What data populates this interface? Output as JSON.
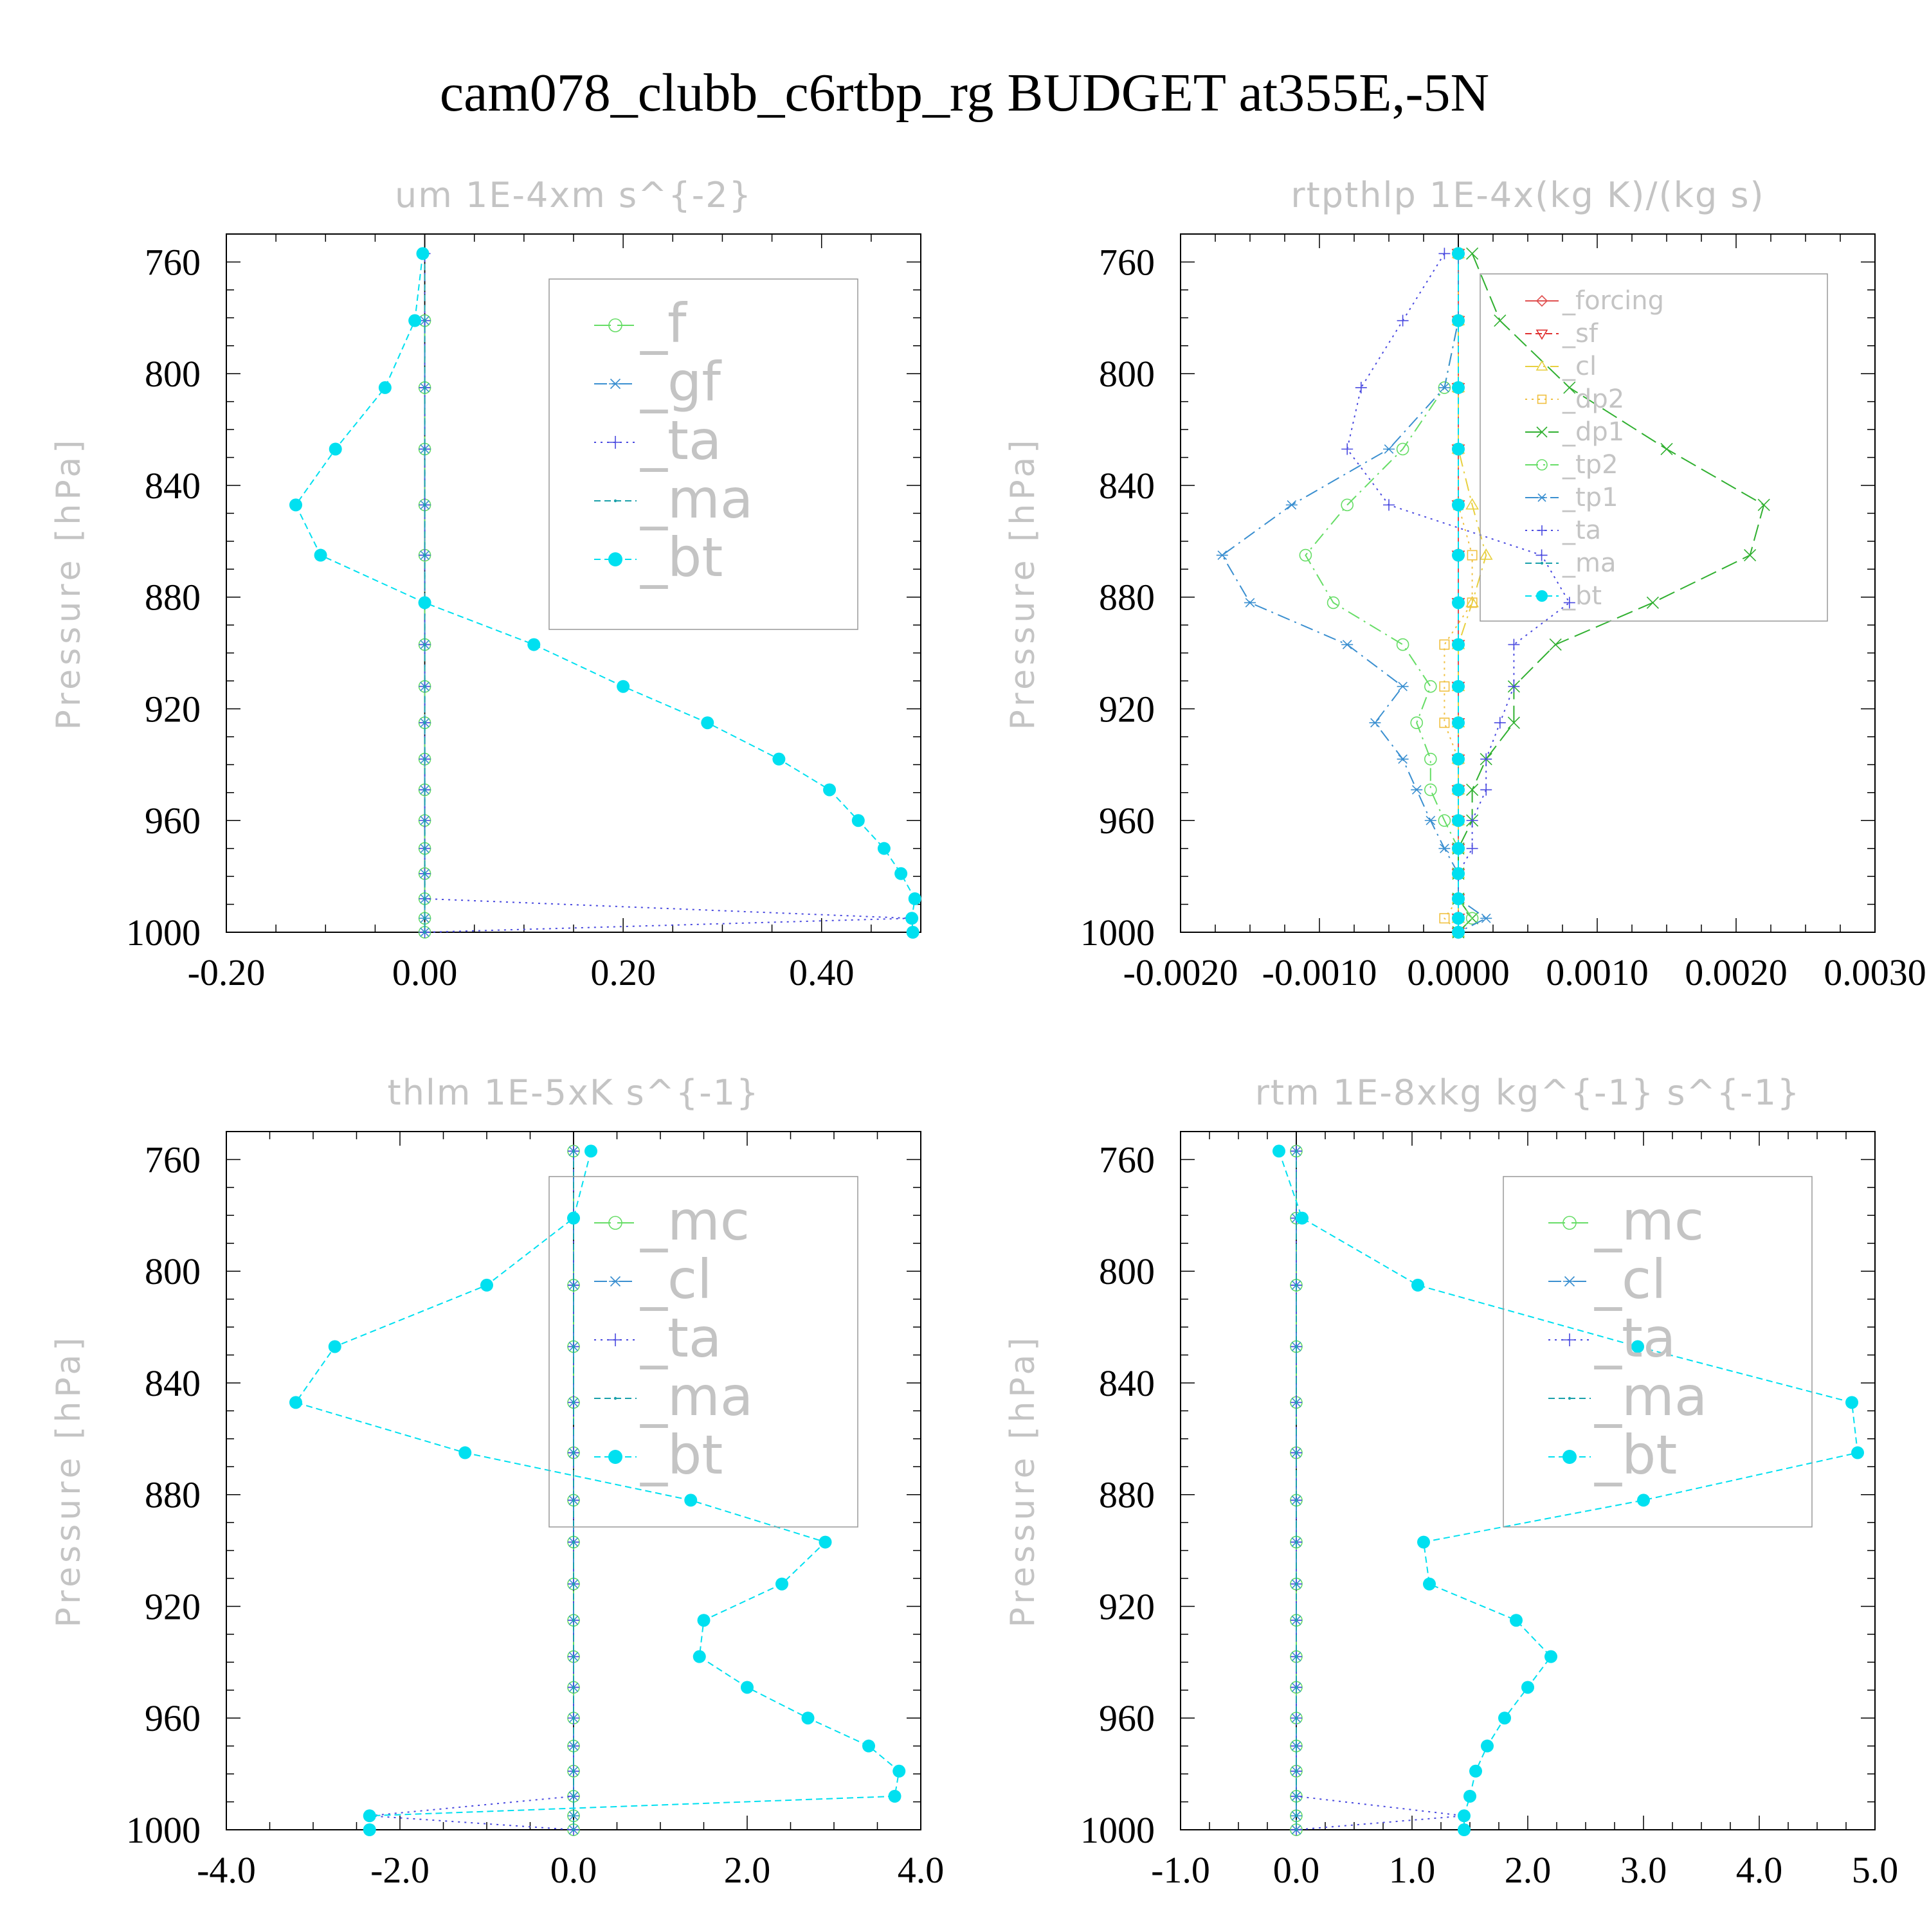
{
  "title": "cam078_clubb_c6rtbp_rg  BUDGET at355E,-5N",
  "chart_data": [
    {
      "type": "line",
      "title": "um   1E-4xm s^{-2}",
      "ylabel": "Pressure [hPa]",
      "xlabel": "",
      "ylim": [
        1000,
        750
      ],
      "xlim": [
        -0.2,
        0.5
      ],
      "xticks": [
        -0.2,
        0.0,
        0.2,
        0.4
      ],
      "xtick_labels": [
        "-0.20",
        "0.00",
        "0.20",
        "0.40"
      ],
      "yticks": [
        760,
        800,
        840,
        880,
        920,
        960,
        1000
      ],
      "ytick_labels": [
        "760",
        "800",
        "840",
        "880",
        "920",
        "960",
        "1000"
      ],
      "legend_position": "top-right",
      "legend_font": "large",
      "y": [
        757,
        781,
        805,
        827,
        847,
        865,
        882,
        897,
        912,
        925,
        938,
        949,
        960,
        970,
        979,
        988,
        995,
        1000
      ],
      "series": [
        {
          "name": "_f",
          "color": "#66dd66",
          "marker": "circle-open",
          "dash": "dash-long",
          "values": [
            null,
            0,
            0,
            0,
            0,
            0,
            0,
            0,
            0,
            0,
            0,
            0,
            0,
            0,
            0,
            0,
            0,
            0
          ]
        },
        {
          "name": "_gf",
          "color": "#3a8fd0",
          "marker": "asterisk",
          "dash": "dashdot",
          "values": [
            null,
            0,
            0,
            0,
            0,
            0,
            0,
            0,
            0,
            0,
            0,
            0,
            0,
            0,
            0,
            0,
            0,
            0
          ]
        },
        {
          "name": "_ta",
          "color": "#4a4ae0",
          "marker": "plus",
          "dash": "dot",
          "values": [
            0,
            0,
            0,
            0,
            0,
            0,
            0,
            0,
            0,
            0,
            0,
            0,
            0,
            0,
            0,
            0,
            0.49,
            0
          ]
        },
        {
          "name": "_ma",
          "color": "#1aa0aa",
          "marker": "dot",
          "dash": "dash",
          "values": [
            0,
            0,
            0,
            0,
            0,
            0,
            0,
            0,
            0,
            0,
            0,
            0,
            0,
            0,
            0,
            0,
            0,
            0
          ]
        },
        {
          "name": "_bt",
          "color": "#00e0f0",
          "marker": "filled-circle",
          "dash": "dash",
          "values": [
            -0.002,
            -0.01,
            -0.04,
            -0.09,
            -0.13,
            -0.105,
            0.0,
            0.11,
            0.2,
            0.285,
            0.357,
            0.408,
            0.437,
            0.463,
            0.48,
            0.494,
            0.491,
            0.492
          ]
        }
      ]
    },
    {
      "type": "line",
      "title": "rtpthlp   1E-4x(kg K)/(kg s)",
      "ylabel": "Pressure [hPa]",
      "xlabel": "",
      "ylim": [
        1000,
        750
      ],
      "xlim": [
        -0.002,
        0.003
      ],
      "xticks": [
        -0.002,
        -0.001,
        0.0,
        0.001,
        0.002,
        0.003
      ],
      "xtick_labels": [
        "-0.0020",
        "-0.0010",
        "0.0000",
        "0.0010",
        "0.0020",
        "0.0030"
      ],
      "yticks": [
        760,
        800,
        840,
        880,
        920,
        960,
        1000
      ],
      "ytick_labels": [
        "760",
        "800",
        "840",
        "880",
        "920",
        "960",
        "1000"
      ],
      "legend_position": "top-right",
      "legend_font": "small",
      "y": [
        757,
        781,
        805,
        827,
        847,
        865,
        882,
        897,
        912,
        925,
        938,
        949,
        960,
        970,
        979,
        988,
        995,
        1000
      ],
      "series": [
        {
          "name": "_forcing",
          "color": "#e05050",
          "marker": "diamond-open",
          "dash": "solid",
          "values": [
            0,
            0,
            0,
            0,
            0,
            0,
            0,
            0,
            0,
            0,
            0,
            0,
            0,
            0,
            0,
            0,
            0,
            0
          ]
        },
        {
          "name": "_sf",
          "color": "#e03030",
          "marker": "triangle-down-open",
          "dash": "dash",
          "values": [
            0,
            0,
            0,
            0,
            0,
            0,
            0,
            0,
            0,
            0,
            0,
            0,
            0,
            0,
            0,
            0,
            0,
            0
          ]
        },
        {
          "name": "_cl",
          "color": "#e8d040",
          "marker": "triangle-up-open",
          "dash": "dashdot",
          "values": [
            0,
            0,
            0,
            0,
            0.0001,
            0.0002,
            0.0001,
            0,
            0,
            0,
            0,
            0,
            0,
            0,
            0,
            0,
            0,
            0
          ]
        },
        {
          "name": "_dp2",
          "color": "#f0c040",
          "marker": "square-open",
          "dash": "dot",
          "values": [
            0,
            0,
            0,
            0,
            0,
            0.0001,
            0.0001,
            -0.0001,
            -0.0001,
            -0.0001,
            0,
            0,
            0,
            0,
            0,
            0,
            -0.0001,
            0
          ]
        },
        {
          "name": "_dp1",
          "color": "#30b030",
          "marker": "x",
          "dash": "dash-long",
          "values": [
            0.0001,
            0.0003,
            0.0008,
            0.0015,
            0.0022,
            0.0021,
            0.0014,
            0.0007,
            0.0004,
            0.0004,
            0.0002,
            0.0001,
            0.0001,
            0,
            0,
            0,
            0.0001,
            0
          ]
        },
        {
          "name": "_tp2",
          "color": "#66dd66",
          "marker": "circle-open",
          "dash": "dashdot",
          "values": [
            0,
            0,
            -0.0001,
            -0.0004,
            -0.0008,
            -0.0011,
            -0.0009,
            -0.0004,
            -0.0002,
            -0.0003,
            -0.0002,
            -0.0002,
            -0.0001,
            0,
            0,
            0,
            0.0001,
            0
          ]
        },
        {
          "name": "_tp1",
          "color": "#3a8fd0",
          "marker": "asterisk",
          "dash": "dashdot",
          "values": [
            0,
            0,
            -0.0001,
            -0.0005,
            -0.0012,
            -0.0017,
            -0.0015,
            -0.0008,
            -0.0004,
            -0.0006,
            -0.0004,
            -0.0003,
            -0.0002,
            -0.0001,
            0,
            0,
            0.0002,
            0
          ]
        },
        {
          "name": "_ta",
          "color": "#4a4ae0",
          "marker": "plus",
          "dash": "dot",
          "values": [
            -0.0001,
            -0.0004,
            -0.0007,
            -0.0008,
            -0.0005,
            0.0006,
            0.0008,
            0.0004,
            0.0004,
            0.0003,
            0.0002,
            0.0002,
            0.0001,
            0.0001,
            0,
            0,
            0,
            0
          ]
        },
        {
          "name": "_ma",
          "color": "#1aa0aa",
          "marker": "dot",
          "dash": "dash",
          "values": [
            0,
            0,
            0,
            0,
            0,
            0,
            0,
            0,
            0,
            0,
            0,
            0,
            0,
            0,
            0,
            0,
            0,
            0
          ]
        },
        {
          "name": "_bt",
          "color": "#00e0f0",
          "marker": "filled-circle",
          "dash": "dash",
          "values": [
            0,
            0,
            0,
            0,
            0,
            0,
            0,
            0,
            0,
            0,
            0,
            0,
            0,
            0,
            0,
            0,
            0,
            0
          ]
        }
      ]
    },
    {
      "type": "line",
      "title": "thlm   1E-5xK s^{-1}",
      "ylabel": "Pressure [hPa]",
      "xlabel": "",
      "ylim": [
        1000,
        750
      ],
      "xlim": [
        -4.0,
        4.0
      ],
      "xticks": [
        -4.0,
        -2.0,
        0.0,
        2.0,
        4.0
      ],
      "xtick_labels": [
        "-4.0",
        "-2.0",
        "0.0",
        "2.0",
        "4.0"
      ],
      "yticks": [
        760,
        800,
        840,
        880,
        920,
        960,
        1000
      ],
      "ytick_labels": [
        "760",
        "800",
        "840",
        "880",
        "920",
        "960",
        "1000"
      ],
      "legend_position": "top-right",
      "legend_font": "large",
      "y": [
        757,
        781,
        805,
        827,
        847,
        865,
        882,
        897,
        912,
        925,
        938,
        949,
        960,
        970,
        979,
        988,
        995,
        1000
      ],
      "series": [
        {
          "name": "_mc",
          "color": "#66dd66",
          "marker": "circle-open",
          "dash": "dash-long",
          "values": [
            0,
            0,
            0,
            0,
            0,
            0,
            0,
            0,
            0,
            0,
            0,
            0,
            0,
            0,
            0,
            0,
            0,
            0
          ]
        },
        {
          "name": "_cl",
          "color": "#3a8fd0",
          "marker": "asterisk",
          "dash": "dashdot",
          "values": [
            0,
            0,
            0,
            0,
            0,
            0,
            0,
            0,
            0,
            0,
            0,
            0,
            0,
            0,
            0,
            0,
            0,
            0
          ]
        },
        {
          "name": "_ta",
          "color": "#4a4ae0",
          "marker": "plus",
          "dash": "dot",
          "values": [
            0,
            0,
            0,
            0,
            0,
            0,
            0,
            0,
            0,
            0,
            0,
            0,
            0,
            0,
            0,
            0,
            -2.35,
            0
          ]
        },
        {
          "name": "_ma",
          "color": "#1aa0aa",
          "marker": "dot",
          "dash": "dash",
          "values": [
            0,
            0,
            0,
            0,
            0,
            0,
            0,
            0,
            0,
            0,
            0,
            0,
            0,
            0,
            0,
            0,
            0,
            0
          ]
        },
        {
          "name": "_bt",
          "color": "#00e0f0",
          "marker": "filled-circle",
          "dash": "dash",
          "values": [
            0.2,
            0.0,
            -1.0,
            -2.75,
            -3.2,
            -1.25,
            1.35,
            2.9,
            2.4,
            1.5,
            1.45,
            2.0,
            2.7,
            3.4,
            3.75,
            3.7,
            -2.35,
            -2.35
          ]
        }
      ]
    },
    {
      "type": "line",
      "title": "rtm   1E-8xkg kg^{-1} s^{-1}",
      "ylabel": "Pressure [hPa]",
      "xlabel": "",
      "ylim": [
        1000,
        750
      ],
      "xlim": [
        -1.0,
        5.0
      ],
      "xticks": [
        -1.0,
        0.0,
        1.0,
        2.0,
        3.0,
        4.0,
        5.0
      ],
      "xtick_labels": [
        "-1.0",
        "0.0",
        "1.0",
        "2.0",
        "3.0",
        "4.0",
        "5.0"
      ],
      "yticks": [
        760,
        800,
        840,
        880,
        920,
        960,
        1000
      ],
      "ytick_labels": [
        "760",
        "800",
        "840",
        "880",
        "920",
        "960",
        "1000"
      ],
      "legend_position": "top-right",
      "legend_font": "large",
      "y": [
        757,
        781,
        805,
        827,
        847,
        865,
        882,
        897,
        912,
        925,
        938,
        949,
        960,
        970,
        979,
        988,
        995,
        1000
      ],
      "series": [
        {
          "name": "_mc",
          "color": "#66dd66",
          "marker": "circle-open",
          "dash": "dash-long",
          "values": [
            0,
            0,
            0,
            0,
            0,
            0,
            0,
            0,
            0,
            0,
            0,
            0,
            0,
            0,
            0,
            0,
            0,
            0
          ]
        },
        {
          "name": "_cl",
          "color": "#3a8fd0",
          "marker": "asterisk",
          "dash": "dashdot",
          "values": [
            0,
            0,
            0,
            0,
            0,
            0,
            0,
            0,
            0,
            0,
            0,
            0,
            0,
            0,
            0,
            0,
            0,
            0
          ]
        },
        {
          "name": "_ta",
          "color": "#4a4ae0",
          "marker": "plus",
          "dash": "dot",
          "values": [
            0,
            0,
            0,
            0,
            0,
            0,
            0,
            0,
            0,
            0,
            0,
            0,
            0,
            0,
            0,
            0,
            1.45,
            0
          ]
        },
        {
          "name": "_ma",
          "color": "#1aa0aa",
          "marker": "dot",
          "dash": "dash",
          "values": [
            0,
            0,
            0,
            0,
            0,
            0,
            0,
            0,
            0,
            0,
            0,
            0,
            0,
            0,
            0,
            0,
            0,
            0
          ]
        },
        {
          "name": "_bt",
          "color": "#00e0f0",
          "marker": "filled-circle",
          "dash": "dash",
          "values": [
            -0.15,
            0.05,
            1.05,
            2.95,
            4.8,
            4.85,
            3.0,
            1.1,
            1.15,
            1.9,
            2.2,
            2.0,
            1.8,
            1.65,
            1.55,
            1.5,
            1.45,
            1.45
          ]
        }
      ]
    }
  ]
}
